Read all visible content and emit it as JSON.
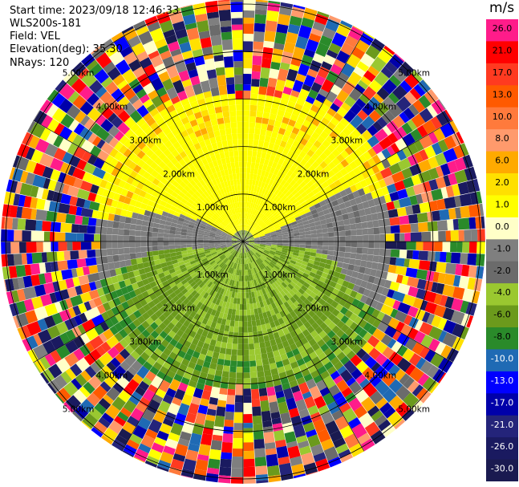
{
  "chart_data": {
    "type": "heatmap",
    "header": {
      "start_time": "Start time: 2023/09/18 12:46:33",
      "instrument": "WLS200s-181",
      "field": "Field: VEL",
      "elevation": "Elevation(deg): 35.30",
      "nrays": "NRays: 120"
    },
    "nrays": 120,
    "range_rings_km": [
      1,
      2,
      3,
      4,
      5
    ],
    "range_ring_labels": [
      "1.00km",
      "2.00km",
      "3.00km",
      "4.00km",
      "5.00km"
    ],
    "azimuth_spokes_deg": [
      0,
      30,
      60,
      90,
      120,
      150,
      180,
      210,
      240,
      270,
      300,
      330
    ],
    "max_range_km": 5.1,
    "colorbar": {
      "unit": "m/s",
      "ticks": [
        "26.0",
        "21.0",
        "17.0",
        "13.0",
        "10.0",
        "8.0",
        "6.0",
        "2.0",
        "1.0",
        "0.0",
        "-1.0",
        "-2.0",
        "-4.0",
        "-6.0",
        "-8.0",
        "-10.0",
        "-13.0",
        "-17.0",
        "-21.0",
        "-26.0",
        "-30.0"
      ],
      "colors": [
        "#ff1c8a",
        "#ff0000",
        "#ff3a20",
        "#ff5a00",
        "#ff7a3c",
        "#ff9a6c",
        "#ffaa00",
        "#ffe000",
        "#ffff00",
        "#ffffc8",
        "#7f7f7f",
        "#6b6b6b",
        "#9ac830",
        "#6b9a1c",
        "#2a8a2a",
        "#1f6ab4",
        "#0000ff",
        "#0000aa",
        "#24247a",
        "#1a1a60",
        "#1a1a50"
      ]
    },
    "field_structure": {
      "toward_positive_azimuth_deg": 0,
      "clean_signal_max_range_km": 3.3,
      "noise_range_km": [
        3.3,
        5.1
      ]
    }
  }
}
